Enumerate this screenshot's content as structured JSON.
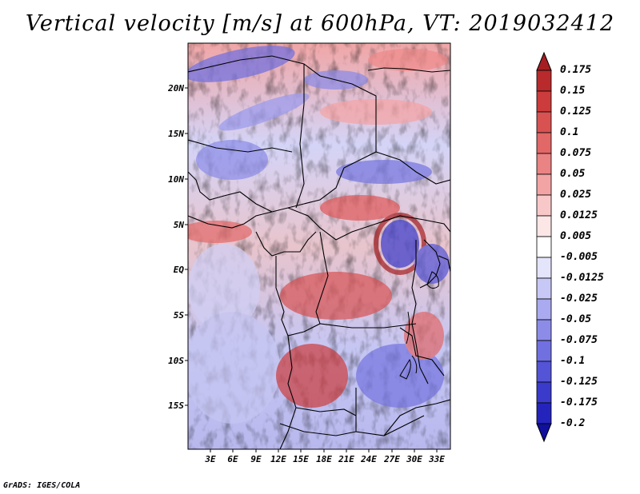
{
  "title": "Vertical velocity [m/s] at 600hPa, VT: 2019032412",
  "credit": "GrADS: IGES/COLA",
  "lat_labels": [
    "20N",
    "15N",
    "10N",
    "5N",
    "EQ",
    "5S",
    "10S",
    "15S"
  ],
  "lon_labels": [
    "3E",
    "6E",
    "9E",
    "12E",
    "15E",
    "18E",
    "21E",
    "24E",
    "27E",
    "30E",
    "33E"
  ],
  "colorbar": {
    "levels": [
      "0.175",
      "0.15",
      "0.125",
      "0.1",
      "0.075",
      "0.05",
      "0.025",
      "0.0125",
      "0.005",
      "-0.005",
      "-0.0125",
      "-0.025",
      "-0.05",
      "-0.075",
      "-0.1",
      "-0.125",
      "-0.175",
      "-0.2"
    ],
    "colors": [
      "#a51f22",
      "#b82a2c",
      "#cc3c3c",
      "#d85252",
      "#e26868",
      "#ea8383",
      "#f2a4a4",
      "#f8c8c8",
      "#fce6e6",
      "#ffffff",
      "#e4e4fb",
      "#c8c8f6",
      "#aaaaf0",
      "#8c8ce8",
      "#7070e0",
      "#5454d6",
      "#3a3acb",
      "#2424bc",
      "#10109e"
    ]
  }
}
